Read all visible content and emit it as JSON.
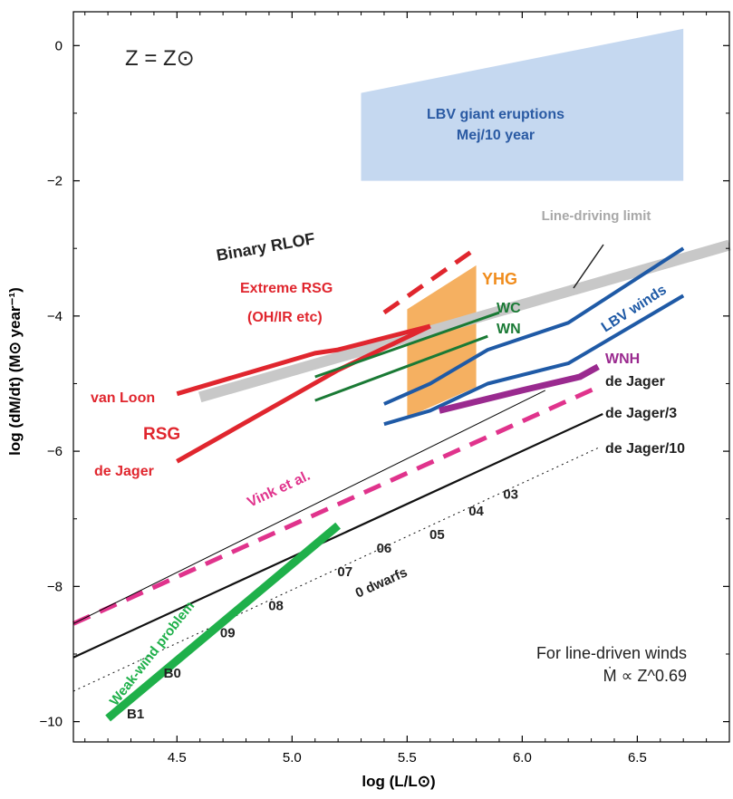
{
  "chart_data": {
    "type": "line",
    "xlabel": "log (L/L⊙)",
    "ylabel": "log (dM/dt) (M⊙ year⁻¹)",
    "xlim": [
      4.05,
      6.9
    ],
    "ylim": [
      -10.3,
      0.5
    ],
    "x_ticks": [
      4.5,
      5.0,
      5.5,
      6.0,
      6.5
    ],
    "x_tick_labels": [
      "4.5",
      "5.0",
      "5.5",
      "6.0",
      "6.5"
    ],
    "y_ticks": [
      0,
      -2,
      -4,
      -6,
      -8,
      -10
    ],
    "y_tick_labels": [
      "0",
      "−2",
      "−4",
      "−6",
      "−8",
      "−10"
    ],
    "grid": false,
    "legend": "none",
    "metallicity_label": "Z = Z⊙",
    "note_line1": "For line-driven winds",
    "note_line2": "Ṁ ∝ Z^0.69",
    "regions": [
      {
        "name": "LBV giant eruptions",
        "label_line1": "LBV giant eruptions",
        "label_line2": "Mej/10 year",
        "color": "#c5d8f0",
        "text_color": "#2a5aa3",
        "x": [
          5.3,
          6.7,
          6.7,
          5.3
        ],
        "y": [
          -0.7,
          0.25,
          -2.0,
          -2.0
        ]
      },
      {
        "name": "YHG",
        "label": "YHG",
        "color": "#f5b061",
        "text_color": "#f08c1c",
        "x": [
          5.5,
          5.8,
          5.8,
          5.5
        ],
        "y": [
          -3.9,
          -3.25,
          -5.05,
          -5.5
        ]
      }
    ],
    "series": [
      {
        "name": "Line-driving limit",
        "label": "Line-driving limit",
        "color": "#c8c8c8",
        "width": 12,
        "dash": false,
        "x": [
          4.6,
          6.9
        ],
        "y": [
          -5.2,
          -2.95
        ]
      },
      {
        "name": "van Loon",
        "label": "van Loon",
        "color": "#e0262e",
        "width": 5,
        "dash": false,
        "x": [
          4.5,
          5.1,
          5.2,
          5.6
        ],
        "y": [
          -5.15,
          -4.55,
          -4.5,
          -4.15
        ]
      },
      {
        "name": "Extreme RSG",
        "label_line1": "Extreme RSG",
        "label_line2": "(OH/IR etc)",
        "color": "#e0262e",
        "width": 5,
        "dash": true,
        "x": [
          5.4,
          5.8
        ],
        "y": [
          -3.95,
          -3.0
        ]
      },
      {
        "name": "RSG de Jager",
        "label": "de Jager",
        "color": "#e0262e",
        "width": 5,
        "dash": false,
        "x": [
          4.5,
          5.2,
          5.6
        ],
        "y": [
          -6.15,
          -4.8,
          -4.15
        ]
      },
      {
        "name": "WC",
        "label": "WC",
        "color": "#1a7a35",
        "width": 3,
        "dash": false,
        "x": [
          5.1,
          5.9
        ],
        "y": [
          -4.9,
          -3.95
        ]
      },
      {
        "name": "WN",
        "label": "WN",
        "color": "#1a7a35",
        "width": 3,
        "dash": false,
        "x": [
          5.1,
          5.85
        ],
        "y": [
          -5.25,
          -4.3
        ]
      },
      {
        "name": "LBV winds upper",
        "label": "LBV winds",
        "color": "#1f5aa6",
        "width": 4,
        "dash": false,
        "x": [
          5.4,
          5.6,
          5.85,
          6.2,
          6.7
        ],
        "y": [
          -5.3,
          -5.0,
          -4.5,
          -4.1,
          -3.0
        ]
      },
      {
        "name": "LBV winds lower",
        "color": "#1f5aa6",
        "width": 4,
        "dash": false,
        "x": [
          5.4,
          5.6,
          5.85,
          6.2,
          6.7
        ],
        "y": [
          -5.6,
          -5.4,
          -5.0,
          -4.7,
          -3.7
        ]
      },
      {
        "name": "WNH",
        "label": "WNH",
        "color": "#9a2a8f",
        "width": 7,
        "dash": false,
        "x": [
          5.64,
          6.0,
          6.25,
          6.33
        ],
        "y": [
          -5.4,
          -5.1,
          -4.9,
          -4.75
        ]
      },
      {
        "name": "Vink et al.",
        "label": "Vink et al.",
        "color": "#e0338c",
        "width": 5,
        "dash": true,
        "x": [
          4.05,
          6.33
        ],
        "y": [
          -8.55,
          -5.05
        ]
      },
      {
        "name": "de Jager",
        "label": "de Jager",
        "color": "#000000",
        "width": 1,
        "dash": false,
        "x": [
          4.05,
          6.1
        ],
        "y": [
          -8.55,
          -5.1
        ]
      },
      {
        "name": "de Jager/3",
        "label": "de Jager/3",
        "color": "#111111",
        "width": 2.2,
        "dash": false,
        "x": [
          4.05,
          6.35
        ],
        "y": [
          -9.05,
          -5.45
        ]
      },
      {
        "name": "de Jager/10",
        "label": "de Jager/10",
        "color": "#111111",
        "width": 1,
        "dash": "dot",
        "x": [
          4.05,
          6.33
        ],
        "y": [
          -9.55,
          -5.95
        ]
      },
      {
        "name": "Weak-wind problem",
        "label": "Weak-wind problem",
        "color": "#1fb04a",
        "width": 9,
        "dash": false,
        "x": [
          4.2,
          5.2
        ],
        "y": [
          -9.95,
          -7.1
        ]
      }
    ],
    "annotations": {
      "binary_rlof": "Binary RLOF",
      "rsg": "RSG",
      "o_dwarfs": "0 dwarfs",
      "de_jager_label": "de Jager",
      "spectral_types": [
        {
          "label": "03",
          "x": 5.95,
          "y": -6.7
        },
        {
          "label": "04",
          "x": 5.8,
          "y": -6.95
        },
        {
          "label": "05",
          "x": 5.63,
          "y": -7.3
        },
        {
          "label": "06",
          "x": 5.4,
          "y": -7.5
        },
        {
          "label": "07",
          "x": 5.23,
          "y": -7.85
        },
        {
          "label": "08",
          "x": 4.93,
          "y": -8.35
        },
        {
          "label": "09",
          "x": 4.72,
          "y": -8.75
        },
        {
          "label": "B0",
          "x": 4.48,
          "y": -9.35
        },
        {
          "label": "B1",
          "x": 4.32,
          "y": -9.95
        }
      ]
    }
  }
}
